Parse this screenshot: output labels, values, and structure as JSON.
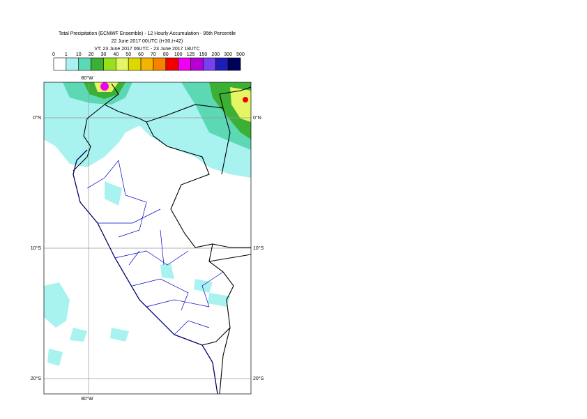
{
  "header": {
    "title": "Total Precipitation (ECMWF Ensemble) - 12 Hourly Accumulation - 95th Percentile",
    "run": "22 June 2017 00UTC (t+30,t+42)",
    "validity": "VT: 23 June 2017 06UTC - 23 June 2017 18UTC"
  },
  "legend": {
    "thresholds": [
      0,
      1,
      10,
      20,
      30,
      40,
      50,
      60,
      70,
      80,
      100,
      125,
      150,
      200,
      300,
      500
    ],
    "colors": [
      "#ffffff",
      "#a8f2f0",
      "#5cd8b4",
      "#3cb034",
      "#96e01c",
      "#e6f564",
      "#dcd800",
      "#f5b400",
      "#f58200",
      "#f00000",
      "#f000f0",
      "#b400d2",
      "#7840f0",
      "#1e1eb4",
      "#00005a"
    ]
  },
  "map": {
    "lon_label": "80°W",
    "lat_labels": [
      "0°N",
      "10°S",
      "20°S"
    ]
  }
}
